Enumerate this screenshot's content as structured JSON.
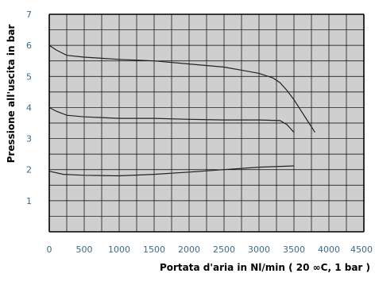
{
  "chart_data": {
    "type": "line",
    "title": "",
    "xlabel": "Portata d'aria in Nl/min ( 20 ∞C, 1 bar )",
    "ylabel": "Pressione all'uscita in bar",
    "xlim": [
      0,
      4500
    ],
    "ylim": [
      0,
      7
    ],
    "xticks": [
      "0",
      "500",
      "1000",
      "1500",
      "2000",
      "2500",
      "3000",
      "3500",
      "4000",
      "4500"
    ],
    "yticks": [
      "1",
      "2",
      "3",
      "4",
      "5",
      "6",
      "7"
    ],
    "grid": true,
    "series": [
      {
        "x": [
          0,
          100,
          250,
          500,
          1000,
          1500,
          2000,
          2500,
          2800,
          3000,
          3200,
          3300,
          3400,
          3500,
          3600,
          3700,
          3800
        ],
        "y": [
          6.0,
          5.85,
          5.68,
          5.62,
          5.55,
          5.5,
          5.4,
          5.3,
          5.18,
          5.1,
          4.95,
          4.8,
          4.55,
          4.25,
          3.9,
          3.55,
          3.2
        ]
      },
      {
        "x": [
          0,
          100,
          250,
          500,
          1000,
          1500,
          2000,
          2500,
          3000,
          3300,
          3400,
          3500
        ],
        "y": [
          4.0,
          3.88,
          3.75,
          3.7,
          3.65,
          3.65,
          3.62,
          3.6,
          3.6,
          3.58,
          3.45,
          3.2
        ]
      },
      {
        "x": [
          0,
          200,
          500,
          1000,
          1500,
          2000,
          2500,
          3000,
          3500
        ],
        "y": [
          1.95,
          1.85,
          1.82,
          1.8,
          1.85,
          1.92,
          2.0,
          2.08,
          2.12
        ]
      }
    ]
  },
  "colors": {
    "plot_background": "#cfcfcf",
    "grid": "#000000",
    "line": "#222222",
    "tick_text": "#3a6a8c"
  }
}
